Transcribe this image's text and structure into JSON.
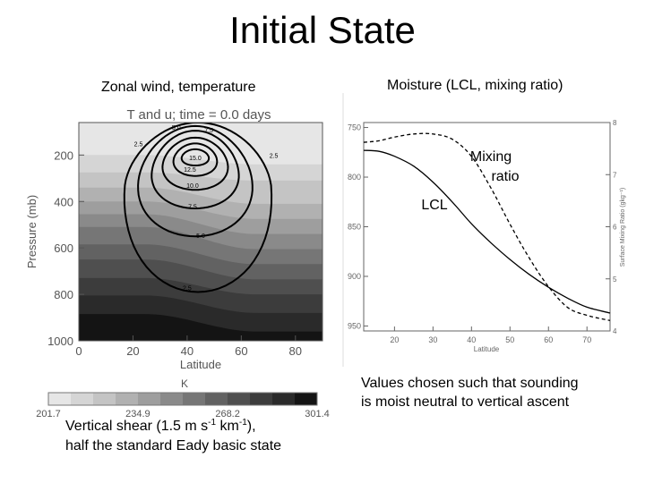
{
  "slide": {
    "title": "Initial State",
    "left_subtitle": "Zonal wind, temperature",
    "right_subtitle": "Moisture (LCL, mixing ratio)",
    "caption_left": {
      "line1_a": "Vertical shear (1.5 m s",
      "sup1": "-1",
      "line1_b": " km",
      "sup2": "-1",
      "line1_c": "),",
      "line2": "half the standard Eady basic state"
    },
    "caption_right": {
      "line1": "Values chosen such that sounding",
      "line2": "is moist neutral to vertical ascent"
    }
  },
  "chart_data": [
    {
      "type": "heatmap",
      "title": "T and u; time = 0.0 days",
      "xlabel": "Latitude",
      "ylabel": "Pressure (mb)",
      "xlim": [
        0,
        90
      ],
      "ylim": [
        1000,
        60
      ],
      "x_ticks": [
        "0",
        "20",
        "40",
        "60",
        "80"
      ],
      "y_ticks": [
        "200",
        "400",
        "600",
        "800",
        "1000"
      ],
      "colorbar": {
        "label": "K",
        "min": 201.7,
        "max": 301.4,
        "tick_labels": [
          "201.7",
          "234.9",
          "268.2",
          "301.4"
        ],
        "colors": [
          "#e6e6e6",
          "#d5d5d5",
          "#c4c4c4",
          "#b1b1b1",
          "#9e9e9e",
          "#8a8a8a",
          "#767676",
          "#626262",
          "#4f4f4f",
          "#3c3c3c",
          "#2a2a2a",
          "#141414"
        ]
      },
      "temperature_bands": [
        {
          "south_p": 200,
          "north_p": 240
        },
        {
          "south_p": 275,
          "north_p": 310
        },
        {
          "south_p": 340,
          "north_p": 410
        },
        {
          "south_p": 400,
          "north_p": 475
        },
        {
          "south_p": 455,
          "north_p": 540
        },
        {
          "south_p": 510,
          "north_p": 605
        },
        {
          "south_p": 585,
          "north_p": 670
        },
        {
          "south_p": 650,
          "north_p": 735
        },
        {
          "south_p": 730,
          "north_p": 800
        },
        {
          "south_p": 805,
          "north_p": 880
        },
        {
          "south_p": 885,
          "north_p": 960
        }
      ],
      "wind_contours": [
        {
          "value": 2.5,
          "label": "2.5",
          "center_lat": 44,
          "center_p": 330,
          "lat_half_width": 27,
          "p_top": 60,
          "p_bottom": 790,
          "label_lat": 40,
          "label_p": 770
        },
        {
          "value": 5.0,
          "label": "5.0",
          "center_lat": 43,
          "center_p": 310,
          "lat_half_width": 21,
          "p_top": 75,
          "p_bottom": 550,
          "label_lat": 45,
          "label_p": 545
        },
        {
          "value": 7.5,
          "label": "7.5",
          "center_lat": 43,
          "center_p": 270,
          "lat_half_width": 16,
          "p_top": 95,
          "p_bottom": 430,
          "label_lat": 42,
          "label_p": 420
        },
        {
          "value": 10.0,
          "label": "10.0",
          "center_lat": 43,
          "center_p": 240,
          "lat_half_width": 12,
          "p_top": 125,
          "p_bottom": 350,
          "label_lat": 42,
          "label_p": 330
        },
        {
          "value": 12.5,
          "label": "12.5",
          "center_lat": 43,
          "center_p": 220,
          "lat_half_width": 8,
          "p_top": 150,
          "p_bottom": 290,
          "label_lat": 41,
          "label_p": 260
        },
        {
          "value": 15.0,
          "label": "15.0",
          "center_lat": 43,
          "center_p": 210,
          "lat_half_width": 5,
          "p_top": 175,
          "p_bottom": 245,
          "label_lat": 43,
          "label_p": 210
        }
      ],
      "extra_contour_labels": [
        {
          "text": "2.5",
          "lat": 22,
          "p": 150
        },
        {
          "text": "2.5",
          "lat": 72,
          "p": 200
        },
        {
          "text": "5.0",
          "lat": 36,
          "p": 80
        },
        {
          "text": "7.5",
          "lat": 48,
          "p": 90
        }
      ]
    },
    {
      "type": "line",
      "xlabel": "Latitude",
      "ylabel_right": "Surface Mixing Ratio (gkg⁻¹)",
      "xlim": [
        12,
        76
      ],
      "ylim_left": [
        745,
        955
      ],
      "ylim_right": [
        4,
        8
      ],
      "x_ticks": [
        "20",
        "30",
        "40",
        "50",
        "60",
        "70"
      ],
      "y_ticks_left": [
        "750",
        "800",
        "850",
        "900",
        "950"
      ],
      "y_ticks_right": [
        "4",
        "5",
        "6",
        "7",
        "8"
      ],
      "grid": false,
      "series": [
        {
          "name": "LCL",
          "style": "solid",
          "x": [
            12,
            16,
            20,
            25,
            30,
            35,
            40,
            45,
            50,
            55,
            60,
            65,
            70,
            76
          ],
          "y_left": [
            773,
            774,
            779,
            789,
            805,
            825,
            847,
            866,
            883,
            898,
            911,
            922,
            931,
            937
          ]
        },
        {
          "name": "Mixing ratio",
          "style": "dashed",
          "x": [
            12,
            16,
            20,
            25,
            30,
            35,
            40,
            45,
            50,
            55,
            60,
            65,
            70,
            76
          ],
          "y_right": [
            7.62,
            7.65,
            7.72,
            7.78,
            7.78,
            7.68,
            7.35,
            6.75,
            6.05,
            5.4,
            4.85,
            4.45,
            4.3,
            4.2
          ]
        }
      ],
      "annotations": {
        "mixing_label_line1": "Mixing",
        "mixing_label_line2": "ratio",
        "lcl_label": "LCL"
      }
    }
  ]
}
